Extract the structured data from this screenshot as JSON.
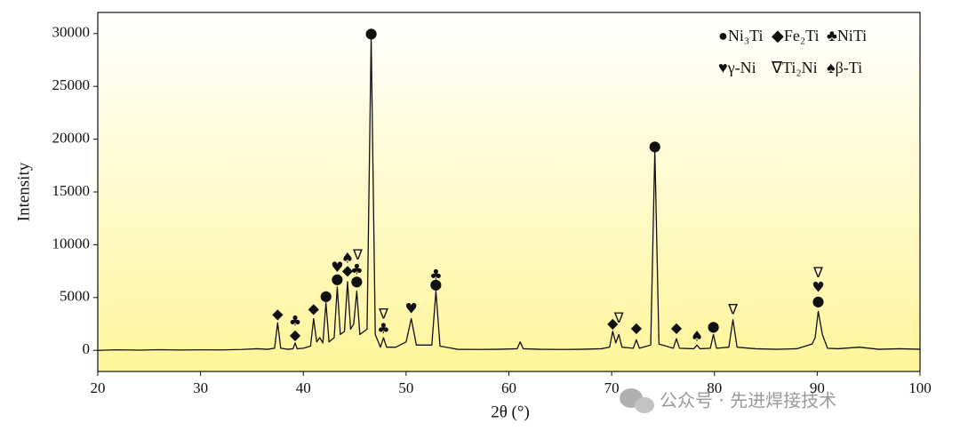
{
  "chart_data": {
    "type": "line",
    "xlabel": "2θ (°)",
    "ylabel": "Intensity",
    "xlim": [
      20,
      100
    ],
    "ylim": [
      -2000,
      32000
    ],
    "xticks": [
      20,
      30,
      40,
      50,
      60,
      70,
      80,
      90,
      100
    ],
    "yticks": [
      0,
      5000,
      10000,
      15000,
      20000,
      25000,
      30000
    ],
    "color": "#111111",
    "legend_items": [
      "●Ni₃Ti",
      "◆Fe₂Ti",
      "♣NiTi",
      "♥γ-Ni",
      "∇Ti₂Ni",
      "♠β-Ti"
    ],
    "x": [
      20,
      22,
      24,
      26,
      28,
      30,
      32,
      34,
      35.5,
      36.5,
      37.2,
      37.5,
      37.8,
      38.5,
      39.0,
      39.2,
      39.4,
      40.0,
      40.7,
      41.0,
      41.3,
      41.6,
      41.9,
      42.2,
      42.5,
      43.0,
      43.3,
      43.6,
      44.0,
      44.3,
      44.6,
      44.9,
      45.2,
      45.5,
      46.2,
      46.6,
      47.0,
      47.5,
      47.8,
      48.1,
      49,
      50.0,
      50.5,
      51.0,
      52.5,
      52.9,
      53.3,
      55,
      57,
      59,
      60.8,
      61.1,
      61.4,
      63,
      65,
      67,
      69,
      69.8,
      70.1,
      70.4,
      70.7,
      71.0,
      72.1,
      72.4,
      72.7,
      73.8,
      74.2,
      74.6,
      76.0,
      76.3,
      76.6,
      78.0,
      78.3,
      78.6,
      79.6,
      79.9,
      80.2,
      81.4,
      81.8,
      82.2,
      84,
      86,
      88,
      89.5,
      89.8,
      90.1,
      90.5,
      91,
      92,
      94.1,
      96,
      98,
      100
    ],
    "values": [
      0,
      50,
      20,
      60,
      30,
      50,
      40,
      80,
      150,
      100,
      200,
      2600,
      200,
      100,
      150,
      700,
      150,
      200,
      400,
      3000,
      800,
      1200,
      700,
      4500,
      800,
      1200,
      6000,
      1500,
      1800,
      6500,
      2000,
      2500,
      5600,
      1500,
      2000,
      29700,
      1500,
      300,
      1200,
      300,
      300,
      800,
      3000,
      500,
      500,
      5600,
      400,
      100,
      80,
      100,
      150,
      800,
      150,
      100,
      80,
      100,
      150,
      300,
      1800,
      700,
      1500,
      300,
      200,
      1000,
      200,
      500,
      19000,
      600,
      200,
      1100,
      200,
      150,
      500,
      150,
      200,
      1500,
      200,
      300,
      2900,
      300,
      150,
      100,
      150,
      600,
      1200,
      3700,
      1500,
      200,
      150,
      300,
      100,
      150,
      100
    ],
    "annotations": [
      {
        "text": "◆",
        "x": 37.5,
        "y": 3400
      },
      {
        "text": "♣",
        "x": 39.2,
        "y": 2700
      },
      {
        "text": "◆",
        "x": 39.2,
        "y": 1400
      },
      {
        "text": "◆",
        "x": 41.0,
        "y": 3900
      },
      {
        "text": "●",
        "x": 42.2,
        "y": 5100
      },
      {
        "text": "♥",
        "x": 43.3,
        "y": 7800
      },
      {
        "text": "●",
        "x": 43.3,
        "y": 6700
      },
      {
        "text": "♠",
        "x": 44.3,
        "y": 8700
      },
      {
        "text": "◆",
        "x": 44.3,
        "y": 7500
      },
      {
        "text": "∇",
        "x": 45.3,
        "y": 9000
      },
      {
        "text": "♣",
        "x": 45.2,
        "y": 7600
      },
      {
        "text": "●",
        "x": 45.2,
        "y": 6500
      },
      {
        "text": "●",
        "x": 46.6,
        "y": 30000
      },
      {
        "text": "∇",
        "x": 47.8,
        "y": 3400
      },
      {
        "text": "♣",
        "x": 47.8,
        "y": 2000
      },
      {
        "text": "♥",
        "x": 50.5,
        "y": 3900
      },
      {
        "text": "♣",
        "x": 52.9,
        "y": 7100
      },
      {
        "text": "●",
        "x": 52.9,
        "y": 6200
      },
      {
        "text": "◆",
        "x": 70.1,
        "y": 2500
      },
      {
        "text": "∇",
        "x": 70.7,
        "y": 3000
      },
      {
        "text": "◆",
        "x": 72.4,
        "y": 2100
      },
      {
        "text": "●",
        "x": 74.2,
        "y": 19300
      },
      {
        "text": "◆",
        "x": 76.3,
        "y": 2100
      },
      {
        "text": "♠",
        "x": 78.3,
        "y": 1300
      },
      {
        "text": "●",
        "x": 79.9,
        "y": 2200
      },
      {
        "text": "∇",
        "x": 81.8,
        "y": 3800
      },
      {
        "text": "∇",
        "x": 90.1,
        "y": 7300
      },
      {
        "text": "♥",
        "x": 90.1,
        "y": 5900
      },
      {
        "text": "●",
        "x": 90.1,
        "y": 4600
      }
    ],
    "watermark": "公众号 · 先进焊接技术"
  }
}
